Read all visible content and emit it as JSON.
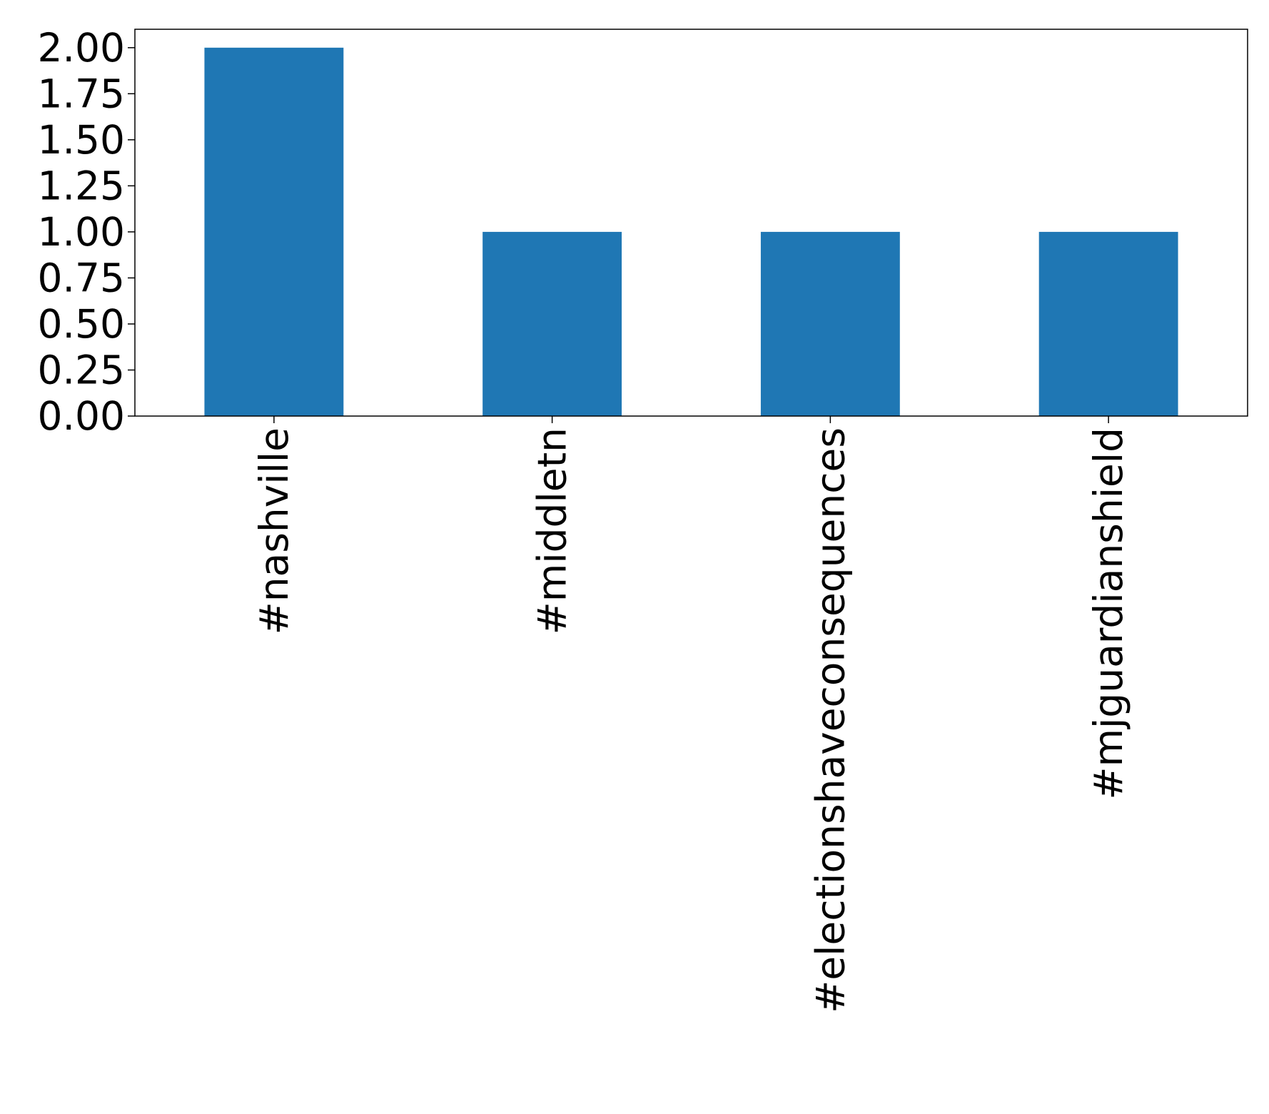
{
  "chart_data": {
    "type": "bar",
    "categories": [
      "#nashville",
      "#middletn",
      "#electionshaveconsequences",
      "#mjguardianshield"
    ],
    "values": [
      2,
      1,
      1,
      1
    ],
    "color": "#1f77b4",
    "ylim": [
      0,
      2.1
    ],
    "yticks": [
      {
        "value": 0,
        "label": "0.00"
      },
      0.25,
      {
        "value": 0.5,
        "label": "0.50"
      },
      0.75,
      {
        "value": 1,
        "label": "1.00"
      },
      1.25,
      {
        "value": 1.5,
        "label": "1.50"
      },
      1.75,
      {
        "value": 2,
        "label": "2.00"
      }
    ],
    "grid": false
  }
}
